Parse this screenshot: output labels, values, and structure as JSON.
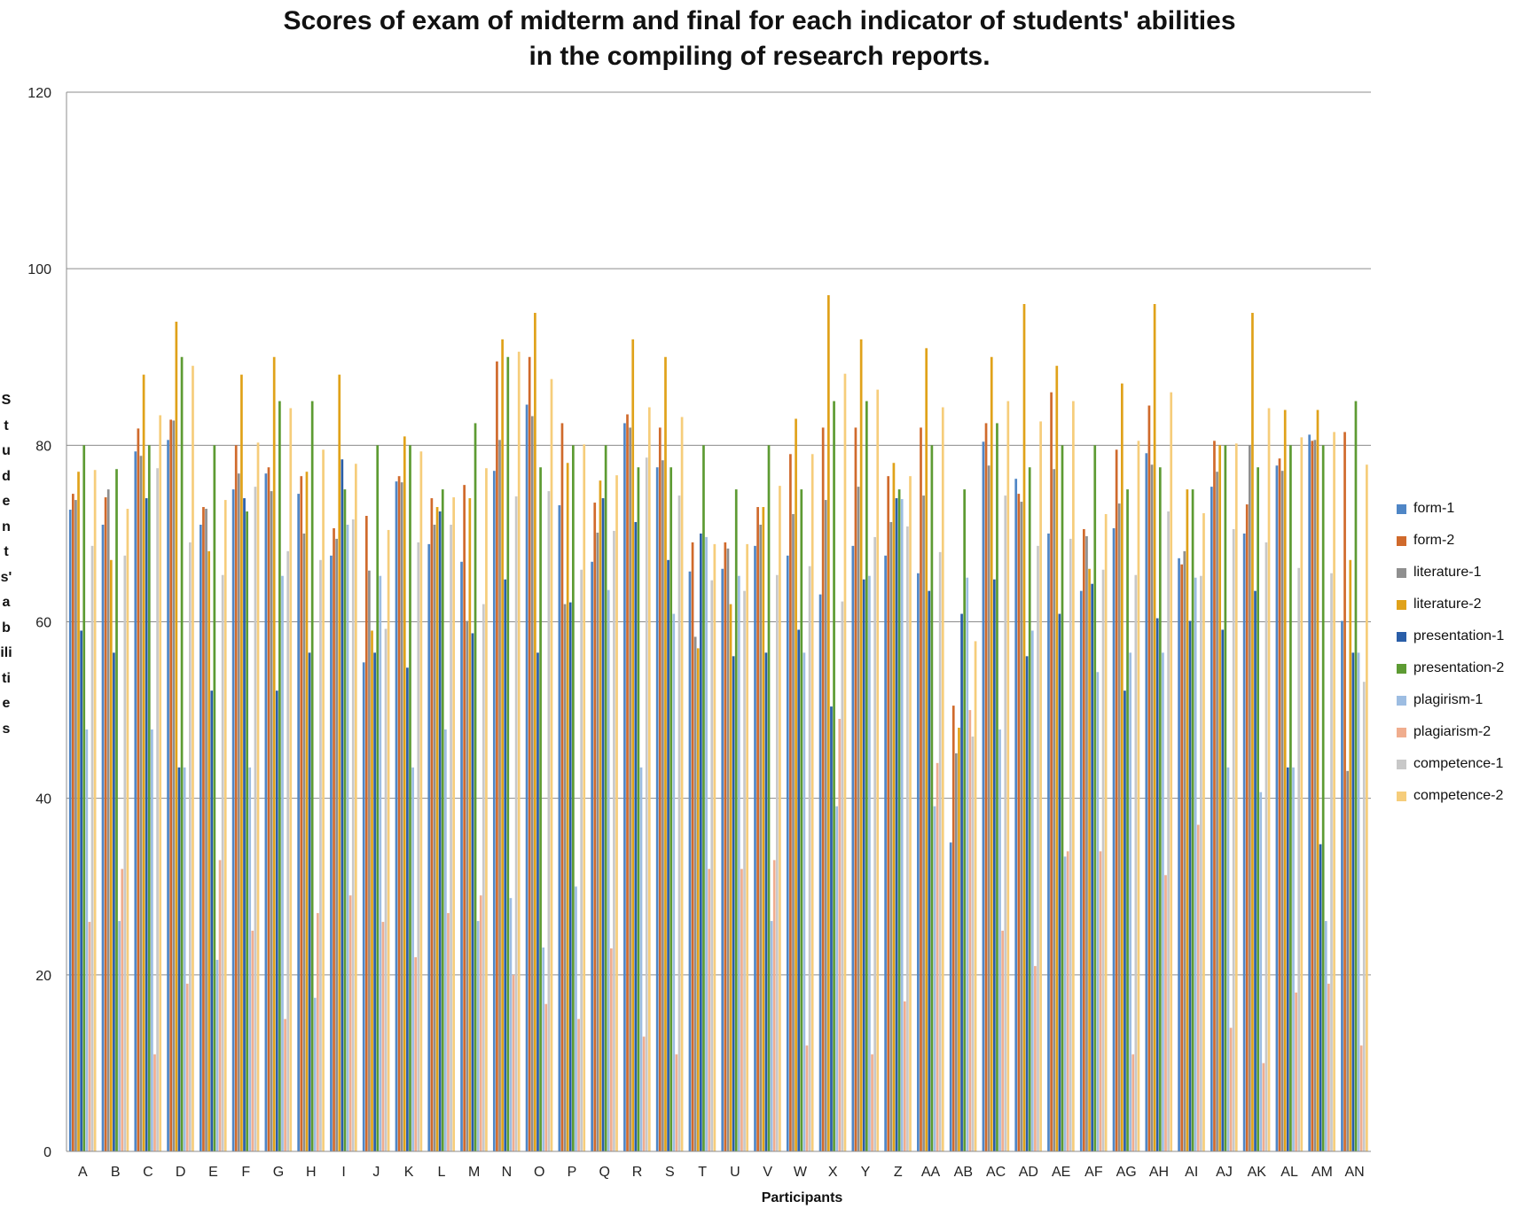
{
  "chart_data": {
    "type": "bar",
    "title": [
      "Scores of exam of midterm and final for each indicator of students' abilities",
      "in the compiling of research reports."
    ],
    "xlabel": "Participants",
    "ylabel": "Students' abilities",
    "ylim": [
      0,
      120
    ],
    "yticks": [
      "0",
      "20",
      "40",
      "60",
      "80",
      "100",
      "120"
    ],
    "grid": true,
    "legend_position": "right",
    "categories": [
      "A",
      "B",
      "C",
      "D",
      "E",
      "F",
      "G",
      "H",
      "I",
      "J",
      "K",
      "L",
      "M",
      "N",
      "O",
      "P",
      "Q",
      "R",
      "S",
      "T",
      "U",
      "V",
      "W",
      "X",
      "Y",
      "Z",
      "AA",
      "AB",
      "AC",
      "AD",
      "AE",
      "AF",
      "AG",
      "AH",
      "AI",
      "AJ",
      "AK",
      "AL",
      "AM",
      "AN"
    ],
    "series": [
      {
        "name": "form-1",
        "color": "#4f86c6",
        "values": [
          72.7,
          71,
          79.3,
          80.6,
          71,
          75,
          76.8,
          74.5,
          67.5,
          55.4,
          75.9,
          68.8,
          66.8,
          77.1,
          84.6,
          73.2,
          66.8,
          82.5,
          77.5,
          65.7,
          66,
          68.6,
          67.5,
          63.1,
          68.6,
          67.5,
          65.5,
          35,
          80.4,
          76.2,
          70,
          63.5,
          70.6,
          79.1,
          67.2,
          75.3,
          70,
          77.7,
          81.2,
          60.1
        ]
      },
      {
        "name": "form-2",
        "color": "#d06a2c",
        "values": [
          74.5,
          74.1,
          81.9,
          82.9,
          73,
          80,
          77.5,
          76.5,
          70.6,
          72,
          76.5,
          74,
          75.5,
          89.5,
          90,
          82.5,
          73.5,
          83.5,
          82,
          69,
          69,
          73,
          79,
          82,
          82,
          76.5,
          82,
          50.5,
          82.5,
          74.5,
          86,
          70.5,
          79.5,
          84.5,
          66.5,
          80.5,
          73.3,
          78.5,
          80.5,
          81.5
        ]
      },
      {
        "name": "literature-1",
        "color": "#8f8f8f",
        "values": [
          73.8,
          75,
          78.8,
          82.8,
          72.8,
          76.8,
          74.8,
          70,
          69.4,
          65.8,
          75.8,
          71,
          60.1,
          80.6,
          83.3,
          62,
          70.1,
          82,
          78.3,
          58.3,
          68.3,
          71,
          72.2,
          73.8,
          75.3,
          71.3,
          74.3,
          45.1,
          77.7,
          73.6,
          77.3,
          69.7,
          73.4,
          77.8,
          68,
          77,
          80,
          77.1,
          80.6,
          43.1
        ]
      },
      {
        "name": "literature-2",
        "color": "#e0a21a",
        "values": [
          77,
          67,
          88,
          94,
          68,
          88,
          90,
          77,
          88,
          59,
          81,
          73,
          74,
          92,
          95,
          78,
          76,
          92,
          90,
          57,
          62,
          73,
          83,
          97,
          92,
          78,
          91,
          48,
          90,
          96,
          89,
          66,
          87,
          96,
          75,
          80,
          95,
          84,
          84,
          67
        ]
      },
      {
        "name": "presentation-1",
        "color": "#2a5ea8",
        "values": [
          59,
          56.5,
          74,
          43.5,
          52.2,
          74,
          52.2,
          56.5,
          78.4,
          56.5,
          54.8,
          72.5,
          58.7,
          64.8,
          56.5,
          62.2,
          74,
          71.3,
          67,
          70,
          56.1,
          56.5,
          59.1,
          50.4,
          64.8,
          74,
          63.5,
          60.9,
          64.8,
          56.1,
          60.9,
          64.3,
          52.2,
          60.4,
          60.1,
          59.1,
          63.5,
          43.5,
          34.8,
          56.5
        ]
      },
      {
        "name": "presentation-2",
        "color": "#5d9b33",
        "values": [
          80,
          77.3,
          80,
          90,
          80,
          72.5,
          85,
          85,
          75,
          80,
          80,
          75,
          82.5,
          90,
          77.5,
          80,
          80,
          77.5,
          77.5,
          80,
          75,
          80,
          75,
          85,
          85,
          75,
          80,
          75,
          82.5,
          77.5,
          80,
          80,
          75,
          77.5,
          75,
          80,
          77.5,
          80,
          80,
          85
        ]
      },
      {
        "name": "plagirism-1",
        "color": "#9dbde2",
        "values": [
          47.8,
          26.1,
          47.8,
          43.5,
          21.7,
          43.5,
          65.2,
          17.4,
          71,
          65.2,
          43.5,
          47.8,
          26.1,
          28.7,
          23.1,
          30,
          63.6,
          43.5,
          60.9,
          69.6,
          65.2,
          26.1,
          56.5,
          39.1,
          65.2,
          73.9,
          39.1,
          65,
          47.8,
          59,
          33.4,
          54.3,
          56.5,
          56.5,
          65,
          43.5,
          40.7,
          43.5,
          26.1,
          56.5
        ]
      },
      {
        "name": "plagiarism-2",
        "color": "#f0ad8e",
        "values": [
          26,
          32,
          11,
          19,
          33,
          25,
          15,
          27,
          29,
          26,
          22,
          27,
          29,
          20,
          16.7,
          15,
          23,
          13,
          11,
          32,
          32,
          33,
          12,
          49,
          11,
          17,
          44,
          50,
          25,
          21,
          34,
          34,
          11,
          31.3,
          37,
          14,
          10,
          18,
          19,
          12
        ]
      },
      {
        "name": "competence-1",
        "color": "#c8c8c8",
        "values": [
          68.6,
          67.5,
          77.4,
          69,
          65.3,
          75.3,
          68,
          67,
          71.6,
          59.2,
          69,
          71,
          62,
          74.2,
          74.8,
          65.9,
          70.3,
          78.6,
          74.3,
          64.7,
          63.5,
          65.3,
          66.3,
          62.3,
          69.6,
          70.8,
          67.9,
          47,
          74.3,
          68.6,
          69.4,
          65.9,
          65.3,
          72.5,
          65.2,
          70.5,
          69,
          66.1,
          65.5,
          53.2
        ]
      },
      {
        "name": "competence-2",
        "color": "#f6cd7b",
        "values": [
          77.2,
          72.8,
          83.4,
          89,
          73.8,
          80.3,
          84.2,
          79.5,
          77.9,
          70.4,
          79.3,
          74.1,
          77.4,
          90.6,
          87.5,
          80.1,
          76.6,
          84.3,
          83.2,
          68.8,
          68.8,
          75.4,
          79,
          88.1,
          86.3,
          76.5,
          84.3,
          57.8,
          85,
          82.7,
          85,
          72.2,
          80.5,
          86,
          72.3,
          80.2,
          84.2,
          80.9,
          81.5,
          77.8
        ]
      }
    ]
  }
}
